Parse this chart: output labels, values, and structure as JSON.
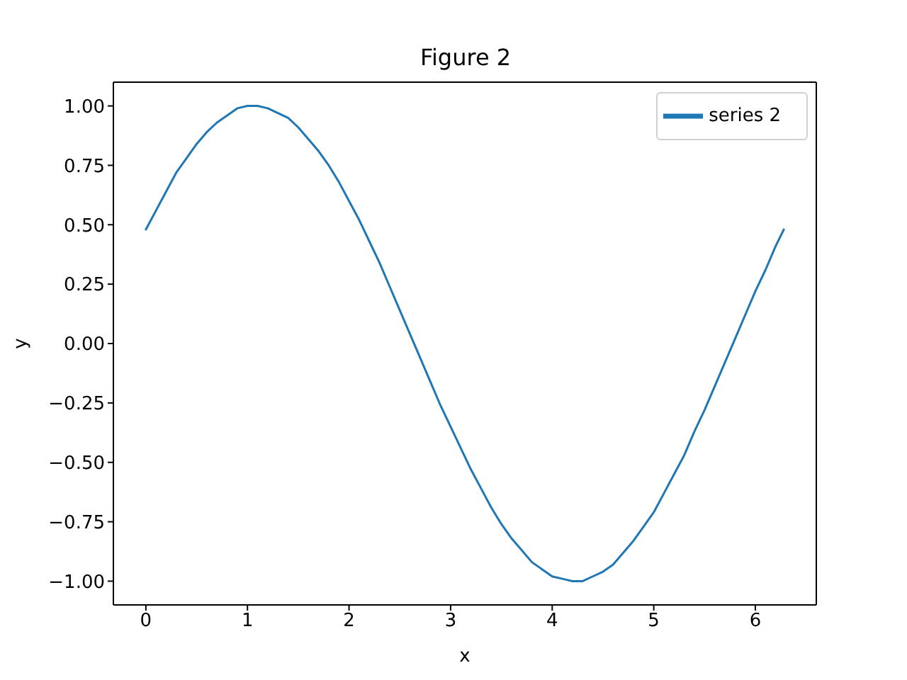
{
  "chart_data": {
    "type": "line",
    "title": "Figure 2",
    "xlabel": "x",
    "ylabel": "y",
    "x": [
      0,
      0.1,
      0.2,
      0.3,
      0.4,
      0.5,
      0.6,
      0.7,
      0.8,
      0.9,
      1.0,
      1.1,
      1.2,
      1.3,
      1.4,
      1.5,
      1.6,
      1.7,
      1.8,
      1.9,
      2.0,
      2.1,
      2.2,
      2.3,
      2.4,
      2.5,
      2.6,
      2.7,
      2.8,
      2.9,
      3.0,
      3.1,
      3.2,
      3.3,
      3.4,
      3.5,
      3.6,
      3.7,
      3.8,
      3.9,
      4.0,
      4.1,
      4.2,
      4.3,
      4.4,
      4.5,
      4.6,
      4.7,
      4.8,
      4.9,
      5.0,
      5.1,
      5.2,
      5.3,
      5.4,
      5.5,
      5.6,
      5.7,
      5.8,
      5.9,
      6.0,
      6.1,
      6.2,
      6.28
    ],
    "series": [
      {
        "name": "series 2",
        "color": "#1f77b4",
        "values": [
          0.48,
          0.56,
          0.64,
          0.72,
          0.78,
          0.84,
          0.89,
          0.93,
          0.96,
          0.99,
          1.0,
          1.0,
          0.99,
          0.97,
          0.95,
          0.91,
          0.86,
          0.81,
          0.75,
          0.68,
          0.6,
          0.52,
          0.43,
          0.34,
          0.24,
          0.14,
          0.04,
          -0.06,
          -0.16,
          -0.26,
          -0.35,
          -0.44,
          -0.53,
          -0.61,
          -0.69,
          -0.76,
          -0.82,
          -0.87,
          -0.92,
          -0.95,
          -0.98,
          -0.99,
          -1.0,
          -1.0,
          -0.98,
          -0.96,
          -0.93,
          -0.88,
          -0.83,
          -0.77,
          -0.71,
          -0.63,
          -0.55,
          -0.47,
          -0.37,
          -0.28,
          -0.18,
          -0.08,
          0.02,
          0.12,
          0.22,
          0.31,
          0.41,
          0.48
        ]
      }
    ],
    "xlim": [
      -0.32,
      6.6
    ],
    "ylim": [
      -1.1,
      1.1
    ],
    "xticks": [
      0,
      1,
      2,
      3,
      4,
      5,
      6
    ],
    "yticks": [
      {
        "value": -1,
        "label": "−1.00"
      },
      {
        "value": -0.75,
        "label": "−0.75"
      },
      {
        "value": -0.5,
        "label": "−0.50"
      },
      {
        "value": -0.25,
        "label": "−0.25"
      },
      {
        "value": 0,
        "label": "0.00"
      },
      {
        "value": 0.25,
        "label": "0.25"
      },
      {
        "value": 0.5,
        "label": "0.50"
      },
      {
        "value": 0.75,
        "label": "0.75"
      },
      {
        "value": 1,
        "label": "1.00"
      }
    ],
    "grid": false,
    "legend": "top right",
    "marker": "none",
    "line_style": "solid"
  }
}
